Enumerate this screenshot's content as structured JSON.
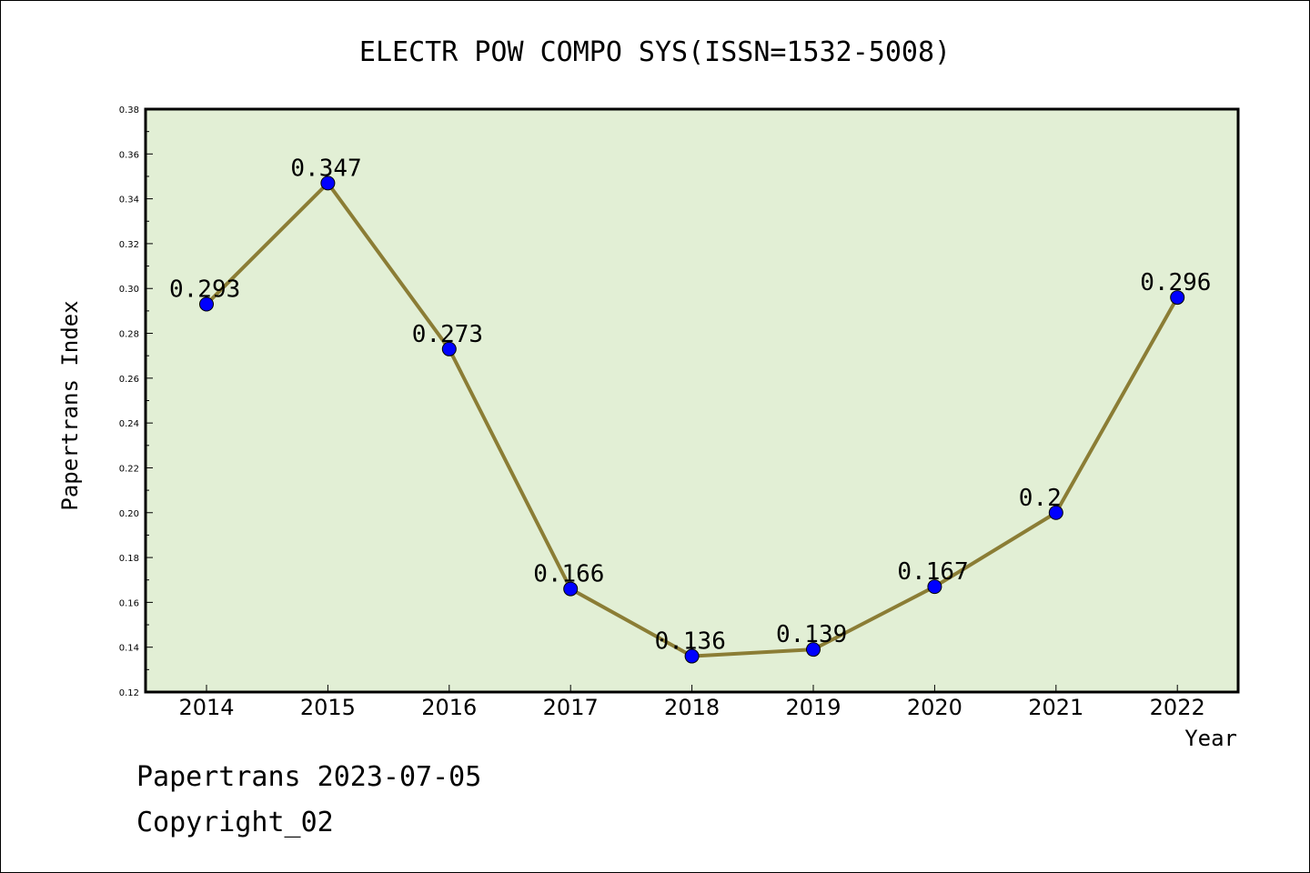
{
  "chart_data": {
    "type": "line",
    "title": "ELECTR POW COMPO SYS(ISSN=1532-5008)",
    "xlabel": "Year",
    "ylabel": "Papertrans Index",
    "categories": [
      "2014",
      "2015",
      "2016",
      "2017",
      "2018",
      "2019",
      "2020",
      "2021",
      "2022"
    ],
    "values": [
      0.293,
      0.347,
      0.273,
      0.166,
      0.136,
      0.139,
      0.167,
      0.2,
      0.296
    ],
    "data_labels": [
      "0.293",
      "0.347",
      "0.273",
      "0.166",
      "0.136",
      "0.139",
      "0.167",
      "0.2",
      "0.296"
    ],
    "ylim": [
      0.12,
      0.38
    ],
    "yticks": [
      "0.12",
      "0.14",
      "0.16",
      "0.18",
      "0.20",
      "0.22",
      "0.24",
      "0.26",
      "0.28",
      "0.30",
      "0.32",
      "0.34",
      "0.36",
      "0.38"
    ],
    "grid": false,
    "colors": {
      "plot_background": "#e2efd5",
      "line": "#8b7d35",
      "marker": "#0000ff"
    }
  },
  "footer": {
    "line1": "Papertrans 2023-07-05",
    "line2": "Copyright_02"
  }
}
